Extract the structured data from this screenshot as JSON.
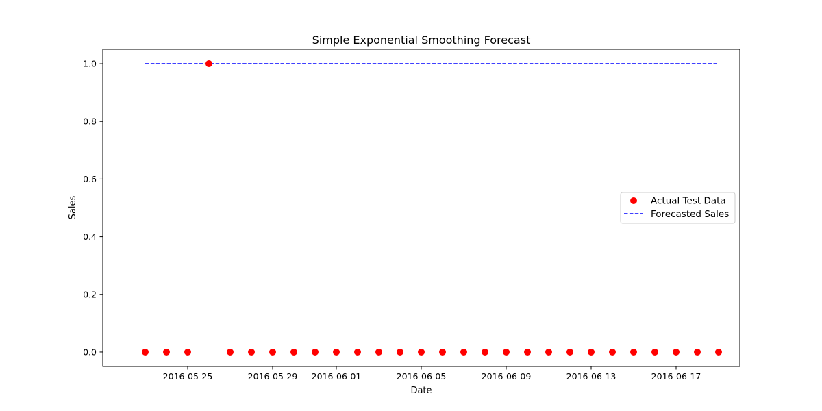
{
  "chart_data": {
    "type": "scatter",
    "title": "Simple Exponential Smoothing Forecast",
    "xlabel": "Date",
    "ylabel": "Sales",
    "x_range": [
      "2016-05-21",
      "2016-06-20"
    ],
    "ylim": [
      -0.05,
      1.05
    ],
    "x_ticks": [
      "2016-05-25",
      "2016-05-29",
      "2016-06-01",
      "2016-06-05",
      "2016-06-09",
      "2016-06-13",
      "2016-06-17"
    ],
    "y_ticks": [
      "0.0",
      "0.2",
      "0.4",
      "0.6",
      "0.8",
      "1.0"
    ],
    "grid": false,
    "legend_position": "center-right",
    "series": [
      {
        "name": "Actual Test Data",
        "type": "scatter",
        "color": "#ff0000",
        "points": [
          {
            "x": "2016-05-23",
            "y": 0
          },
          {
            "x": "2016-05-24",
            "y": 0
          },
          {
            "x": "2016-05-25",
            "y": 0
          },
          {
            "x": "2016-05-26",
            "y": 1
          },
          {
            "x": "2016-05-27",
            "y": 0
          },
          {
            "x": "2016-05-28",
            "y": 0
          },
          {
            "x": "2016-05-29",
            "y": 0
          },
          {
            "x": "2016-05-30",
            "y": 0
          },
          {
            "x": "2016-05-31",
            "y": 0
          },
          {
            "x": "2016-06-01",
            "y": 0
          },
          {
            "x": "2016-06-02",
            "y": 0
          },
          {
            "x": "2016-06-03",
            "y": 0
          },
          {
            "x": "2016-06-04",
            "y": 0
          },
          {
            "x": "2016-06-05",
            "y": 0
          },
          {
            "x": "2016-06-06",
            "y": 0
          },
          {
            "x": "2016-06-07",
            "y": 0
          },
          {
            "x": "2016-06-08",
            "y": 0
          },
          {
            "x": "2016-06-09",
            "y": 0
          },
          {
            "x": "2016-06-10",
            "y": 0
          },
          {
            "x": "2016-06-11",
            "y": 0
          },
          {
            "x": "2016-06-12",
            "y": 0
          },
          {
            "x": "2016-06-13",
            "y": 0
          },
          {
            "x": "2016-06-14",
            "y": 0
          },
          {
            "x": "2016-06-15",
            "y": 0
          },
          {
            "x": "2016-06-16",
            "y": 0
          },
          {
            "x": "2016-06-17",
            "y": 0
          },
          {
            "x": "2016-06-18",
            "y": 0
          },
          {
            "x": "2016-06-19",
            "y": 0
          }
        ]
      },
      {
        "name": "Forecasted Sales",
        "type": "line",
        "style": "dashed",
        "color": "#0000ff",
        "points": [
          {
            "x": "2016-05-23",
            "y": 1
          },
          {
            "x": "2016-06-19",
            "y": 1
          }
        ]
      }
    ]
  }
}
